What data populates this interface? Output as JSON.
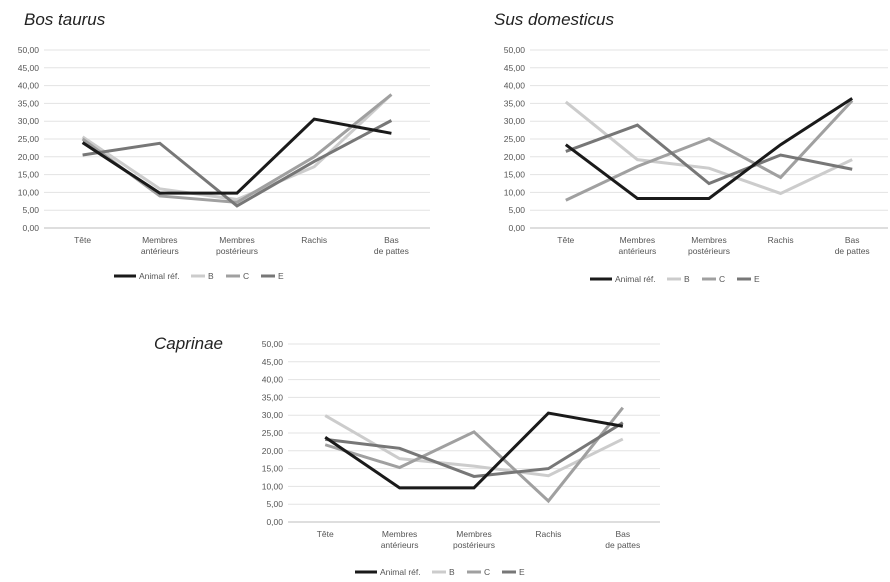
{
  "chart_data": [
    {
      "type": "line",
      "title": "Bos taurus",
      "categories": [
        "Tête",
        "Membres antérieurs",
        "Membres postérieurs",
        "Rachis",
        "Bas de pattes"
      ],
      "ylim": [
        0,
        50
      ],
      "yticks": [
        "0,00",
        "5,00",
        "10,00",
        "15,00",
        "20,00",
        "25,00",
        "30,00",
        "35,00",
        "40,00",
        "45,00",
        "50,00"
      ],
      "grid": true,
      "legend_position": "bottom",
      "series": [
        {
          "name": "Animal réf.",
          "color": "#1a1a1a",
          "values": [
            24.0,
            9.8,
            9.8,
            30.6,
            26.6
          ]
        },
        {
          "name": "B",
          "color": "#cccccc",
          "values": [
            25.6,
            11.0,
            8.0,
            17.2,
            37.5
          ]
        },
        {
          "name": "C",
          "color": "#a0a0a0",
          "values": [
            25.0,
            9.0,
            7.2,
            20.0,
            37.5
          ]
        },
        {
          "name": "E",
          "color": "#777777",
          "values": [
            20.5,
            23.8,
            6.2,
            18.7,
            30.2
          ]
        }
      ]
    },
    {
      "type": "line",
      "title": "Sus domesticus",
      "categories": [
        "Tête",
        "Membres antérieurs",
        "Membres postérieurs",
        "Rachis",
        "Bas de pattes"
      ],
      "ylim": [
        0,
        50
      ],
      "yticks": [
        "0,00",
        "5,00",
        "10,00",
        "15,00",
        "20,00",
        "25,00",
        "30,00",
        "35,00",
        "40,00",
        "45,00",
        "50,00"
      ],
      "grid": true,
      "legend_position": "bottom",
      "series": [
        {
          "name": "Animal réf.",
          "color": "#1a1a1a",
          "values": [
            23.4,
            8.3,
            8.3,
            23.4,
            36.4
          ]
        },
        {
          "name": "B",
          "color": "#cccccc",
          "values": [
            35.4,
            19.2,
            16.8,
            9.7,
            19.2
          ]
        },
        {
          "name": "C",
          "color": "#a0a0a0",
          "values": [
            7.8,
            17.3,
            25.1,
            14.2,
            35.8
          ]
        },
        {
          "name": "E",
          "color": "#777777",
          "values": [
            21.5,
            28.9,
            12.5,
            20.5,
            16.5
          ]
        }
      ]
    },
    {
      "type": "line",
      "title": "Caprinae",
      "categories": [
        "Tête",
        "Membres antérieurs",
        "Membres postérieurs",
        "Rachis",
        "Bas de pattes"
      ],
      "ylim": [
        0,
        50
      ],
      "yticks": [
        "0,00",
        "5,00",
        "10,00",
        "15,00",
        "20,00",
        "25,00",
        "30,00",
        "35,00",
        "40,00",
        "45,00",
        "50,00"
      ],
      "grid": true,
      "legend_position": "bottom",
      "series": [
        {
          "name": "Animal réf.",
          "color": "#1a1a1a",
          "values": [
            23.8,
            9.6,
            9.6,
            30.6,
            26.9
          ]
        },
        {
          "name": "B",
          "color": "#cccccc",
          "values": [
            29.9,
            17.8,
            15.7,
            13.0,
            23.3
          ]
        },
        {
          "name": "C",
          "color": "#a0a0a0",
          "values": [
            21.7,
            15.3,
            25.3,
            5.9,
            32.1
          ]
        },
        {
          "name": "E",
          "color": "#777777",
          "values": [
            23.2,
            20.7,
            12.8,
            15.0,
            27.9
          ]
        }
      ]
    }
  ]
}
